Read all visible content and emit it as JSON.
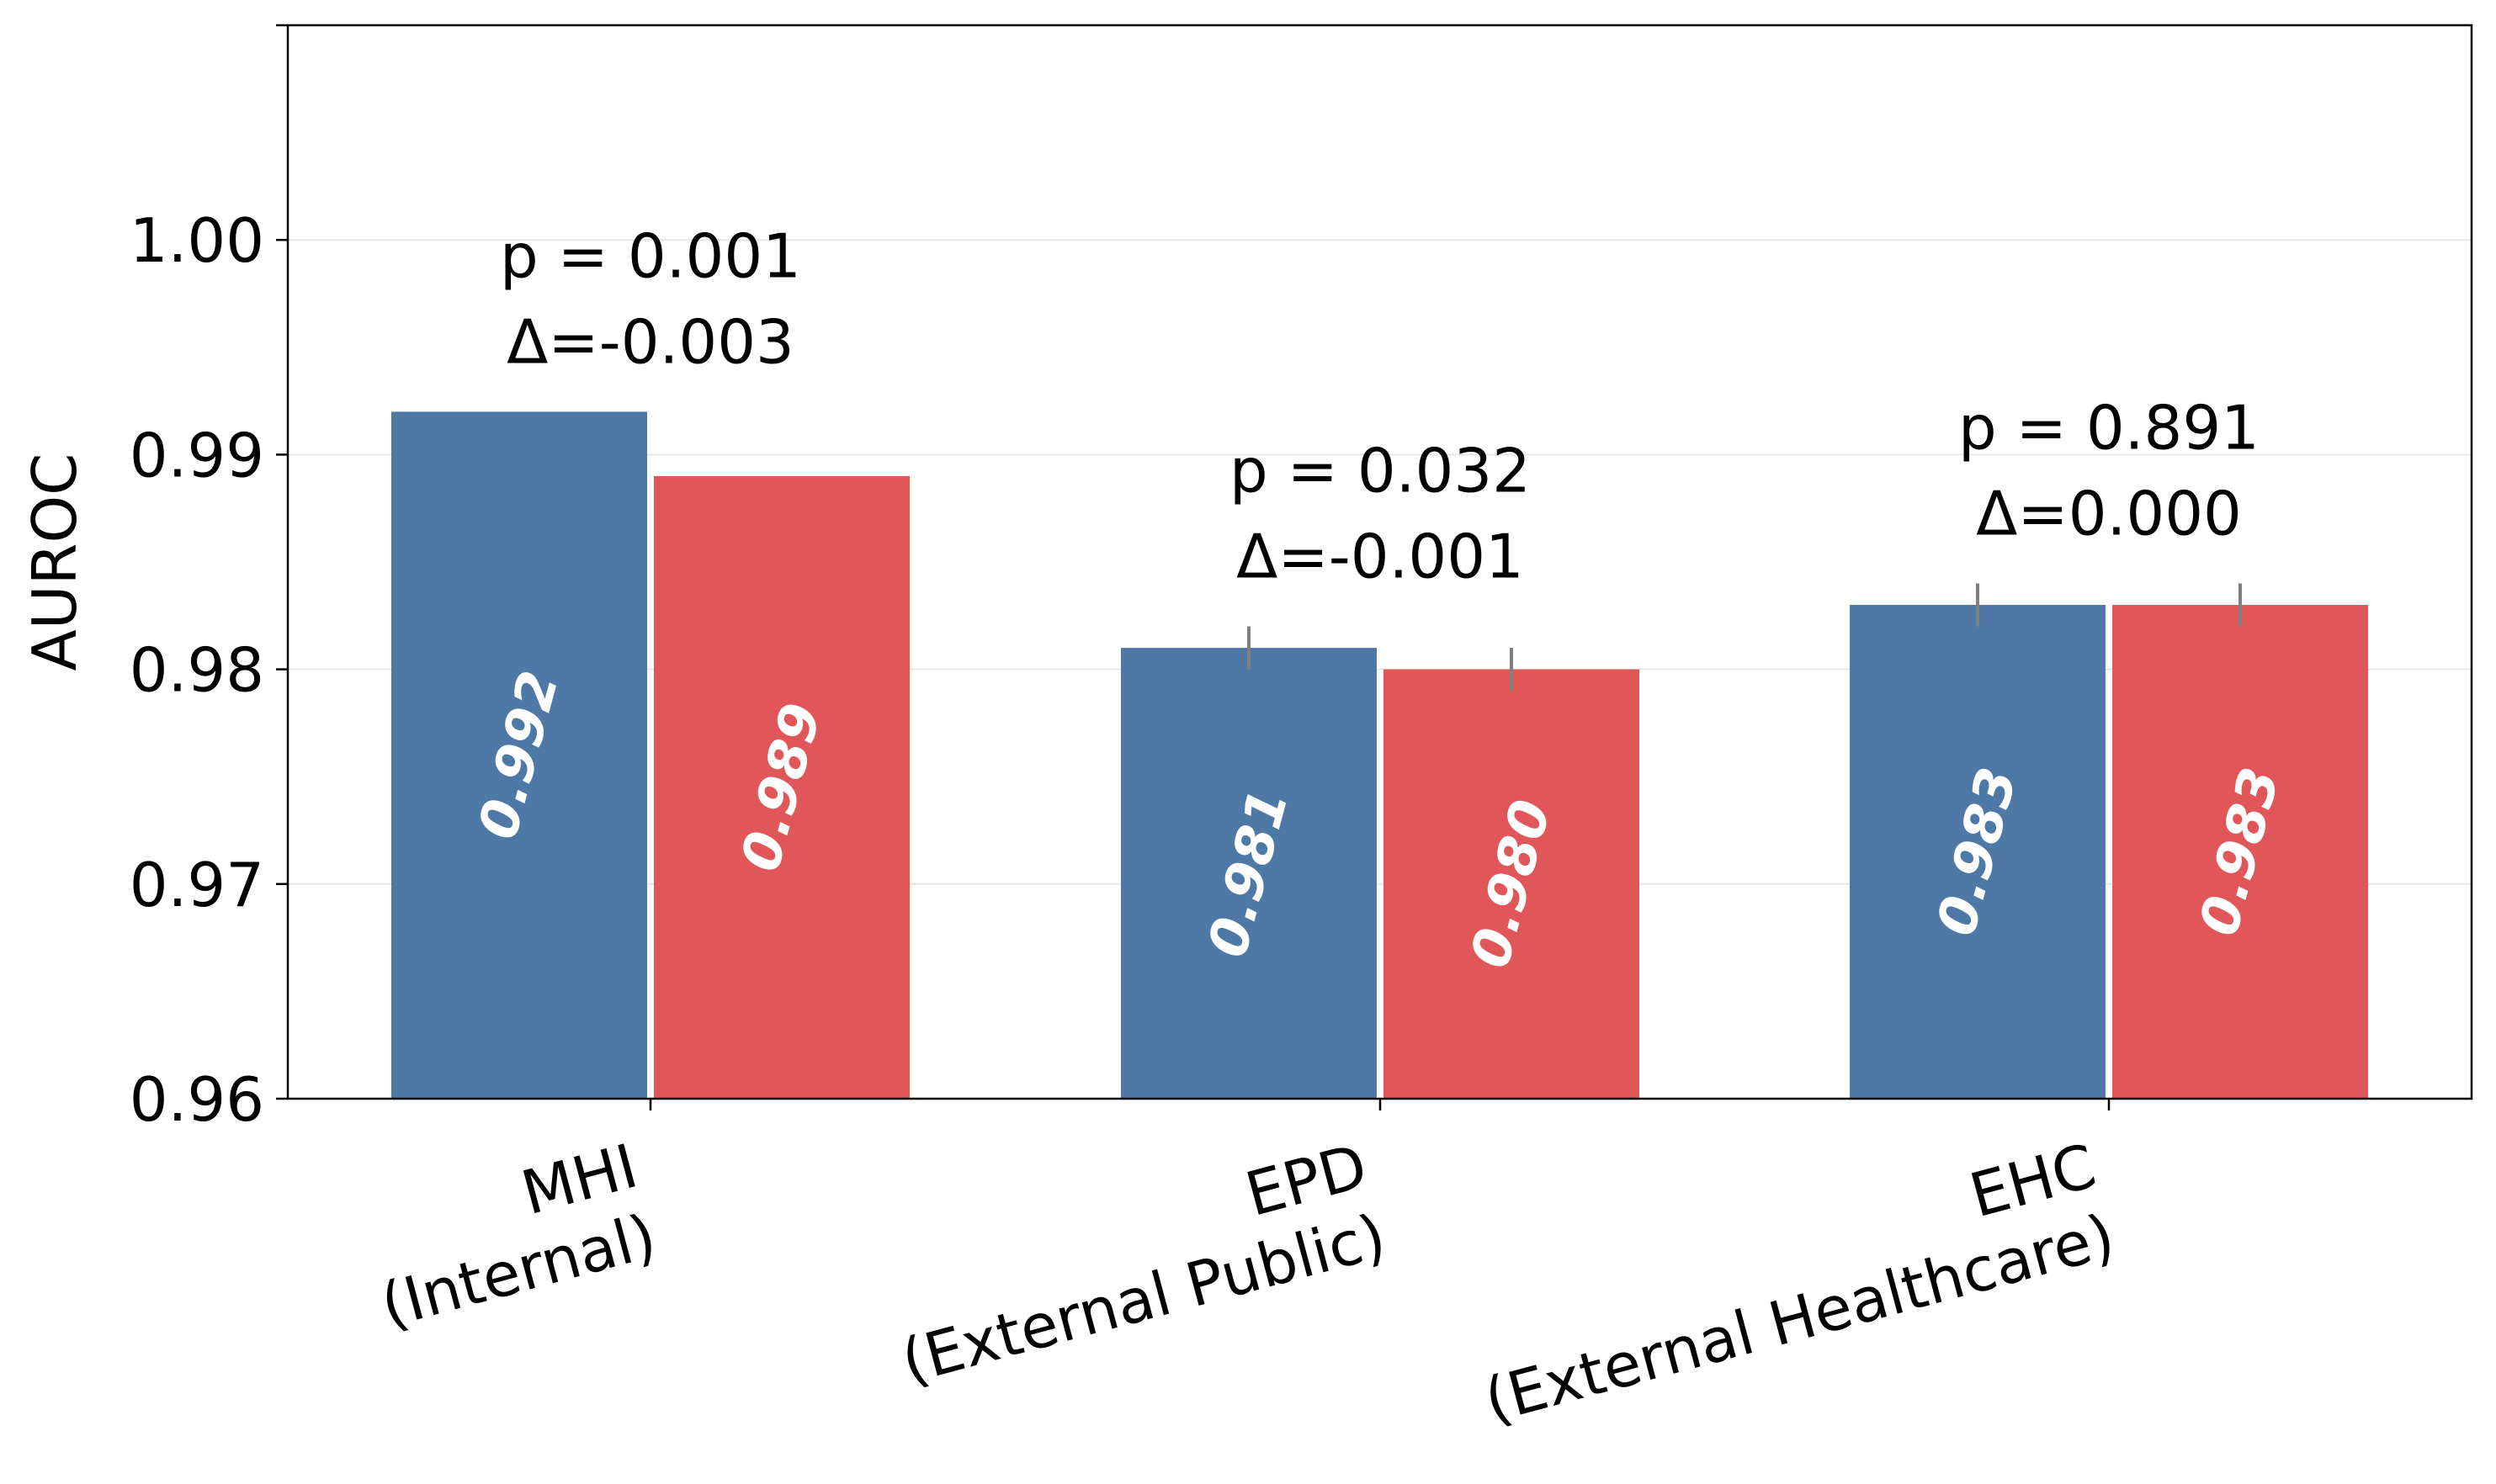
{
  "chart_data": {
    "type": "bar",
    "ylabel": "AUROC",
    "ylim": [
      0.96,
      1.01
    ],
    "yticks": [
      "0.96",
      "0.97",
      "0.98",
      "0.99",
      "1.00"
    ],
    "grid": "horizontal",
    "categories": [
      {
        "name": "MHI",
        "sub": "(Internal)"
      },
      {
        "name": "EPD",
        "sub": "(External Public)"
      },
      {
        "name": "EHC",
        "sub": "(External Healthcare)"
      }
    ],
    "series": [
      {
        "color": "#4e79a7",
        "values": [
          0.992,
          0.981,
          0.983
        ],
        "labels": [
          "0.992",
          "0.981",
          "0.983"
        ],
        "error": [
          null,
          0.001,
          0.001
        ]
      },
      {
        "color": "#e15759",
        "values": [
          0.989,
          0.98,
          0.983
        ],
        "labels": [
          "0.989",
          "0.980",
          "0.983"
        ],
        "error": [
          null,
          0.001,
          0.001
        ]
      }
    ],
    "annotations": [
      {
        "p": "p = 0.001",
        "delta": "Δ=-0.003"
      },
      {
        "p": "p = 0.032",
        "delta": "Δ=-0.001"
      },
      {
        "p": "p = 0.891",
        "delta": "Δ=0.000"
      }
    ]
  }
}
